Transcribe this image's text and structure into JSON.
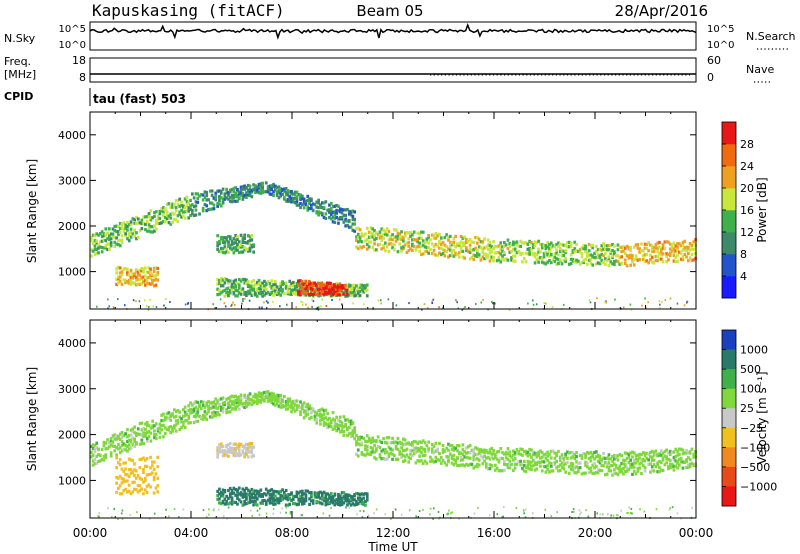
{
  "header": {
    "station": "Kapuskasing (fitACF)",
    "beam": "Beam 05",
    "date": "28/Apr/2016"
  },
  "noise_panel": {
    "left_label": "N.Sky",
    "right_label": "N.Search",
    "left_ticks": [
      "10^5",
      "10^0"
    ],
    "right_ticks": [
      "10^5",
      "10^0"
    ]
  },
  "freq_panel": {
    "left_label_line1": "Freq.",
    "left_label_line2": "[MHz]",
    "right_label": "Nave",
    "left_ticks": [
      "18",
      "8"
    ],
    "right_ticks": [
      "60",
      "0"
    ]
  },
  "cpid": {
    "label": "CPID",
    "value": "tau (fast) 503"
  },
  "time_axis": {
    "label": "Time UT",
    "ticks": [
      "00:00",
      "04:00",
      "08:00",
      "12:00",
      "16:00",
      "20:00",
      "00:00"
    ]
  },
  "chart_data": [
    {
      "type": "heatmap",
      "title": "",
      "xlabel": "",
      "ylabel": "Slant Range [km]",
      "xlim": [
        0,
        24
      ],
      "ylim": [
        180,
        4500
      ],
      "yticks": [
        1000,
        2000,
        3000,
        4000
      ],
      "colorbar": {
        "label": "Power [dB]",
        "ticks": [
          "4",
          "8",
          "12",
          "16",
          "20",
          "24",
          "28"
        ],
        "range": [
          0,
          30
        ],
        "colors": [
          "#1a1aff",
          "#2255cc",
          "#3d8a6a",
          "#3fb04a",
          "#c8e63c",
          "#f0a020",
          "#f06a10",
          "#e81818"
        ]
      },
      "echo_regions": [
        {
          "t0": 0.0,
          "t1": 4.0,
          "r0": 1300,
          "r1": 1800,
          "r_end0": 2200,
          "r_end1": 2700,
          "value": 14
        },
        {
          "t0": 4.0,
          "t1": 7.0,
          "r0": 2200,
          "r1": 2700,
          "r_end0": 2750,
          "r_end1": 2950,
          "value": 10
        },
        {
          "t0": 7.0,
          "t1": 10.5,
          "r0": 2700,
          "r1": 2950,
          "r_end0": 1850,
          "r_end1": 2300,
          "value": 9
        },
        {
          "t0": 10.5,
          "t1": 16.0,
          "r0": 1500,
          "r1": 2000,
          "r_end0": 1200,
          "r_end1": 1700,
          "value": 17
        },
        {
          "t0": 16.0,
          "t1": 21.0,
          "r0": 1200,
          "r1": 1700,
          "r_end0": 1100,
          "r_end1": 1600,
          "value": 15
        },
        {
          "t0": 21.0,
          "t1": 24.0,
          "r0": 1100,
          "r1": 1600,
          "r_end0": 1250,
          "r_end1": 1700,
          "value": 19
        },
        {
          "t0": 1.0,
          "t1": 2.7,
          "r0": 680,
          "r1": 1100,
          "r_end0": 680,
          "r_end1": 1100,
          "value": 20
        },
        {
          "t0": 5.0,
          "t1": 6.5,
          "r0": 1400,
          "r1": 1800,
          "r_end0": 1400,
          "r_end1": 1800,
          "value": 12
        },
        {
          "t0": 5.0,
          "t1": 11.0,
          "r0": 450,
          "r1": 850,
          "r_end0": 450,
          "r_end1": 700,
          "value": 13
        },
        {
          "t0": 8.2,
          "t1": 10.2,
          "r0": 480,
          "r1": 800,
          "r_end0": 480,
          "r_end1": 700,
          "value": 28
        }
      ]
    },
    {
      "type": "heatmap",
      "title": "",
      "xlabel": "Time UT",
      "ylabel": "Slant Range [km]",
      "xlim": [
        0,
        24
      ],
      "ylim": [
        180,
        4500
      ],
      "yticks": [
        1000,
        2000,
        3000,
        4000
      ],
      "colorbar": {
        "label": "Velocity [m s⁻¹]",
        "ticks": [
          "1000",
          "500",
          "100",
          "25",
          "−25",
          "−100",
          "−500",
          "−1000"
        ],
        "range": [
          -1000,
          1000
        ],
        "colors": [
          "#1a3fbf",
          "#2a7a6a",
          "#3fb04a",
          "#7fd83c",
          "#c8c8c8",
          "#f0c020",
          "#f08a20",
          "#e84a18",
          "#e81818"
        ]
      },
      "echo_regions": [
        {
          "t0": 0.0,
          "t1": 4.0,
          "r0": 1300,
          "r1": 1800,
          "r_end0": 2200,
          "r_end1": 2700,
          "value": 0
        },
        {
          "t0": 4.0,
          "t1": 7.0,
          "r0": 2200,
          "r1": 2700,
          "r_end0": 2750,
          "r_end1": 2950,
          "value": 0
        },
        {
          "t0": 7.0,
          "t1": 10.5,
          "r0": 2700,
          "r1": 2950,
          "r_end0": 1850,
          "r_end1": 2300,
          "value": 0
        },
        {
          "t0": 10.5,
          "t1": 16.0,
          "r0": 1500,
          "r1": 2000,
          "r_end0": 1200,
          "r_end1": 1700,
          "value": 0
        },
        {
          "t0": 16.0,
          "t1": 21.0,
          "r0": 1200,
          "r1": 1700,
          "r_end0": 1100,
          "r_end1": 1600,
          "value": 0
        },
        {
          "t0": 21.0,
          "t1": 24.0,
          "r0": 1100,
          "r1": 1600,
          "r_end0": 1250,
          "r_end1": 1700,
          "value": 0
        },
        {
          "t0": 1.0,
          "t1": 2.7,
          "r0": 680,
          "r1": 1500,
          "r_end0": 680,
          "r_end1": 1500,
          "value": -200
        },
        {
          "t0": 5.0,
          "t1": 6.5,
          "r0": 1500,
          "r1": 1800,
          "r_end0": 1500,
          "r_end1": 1800,
          "value": -80
        },
        {
          "t0": 5.0,
          "t1": 11.0,
          "r0": 450,
          "r1": 850,
          "r_end0": 450,
          "r_end1": 700,
          "value": 120
        }
      ]
    }
  ]
}
